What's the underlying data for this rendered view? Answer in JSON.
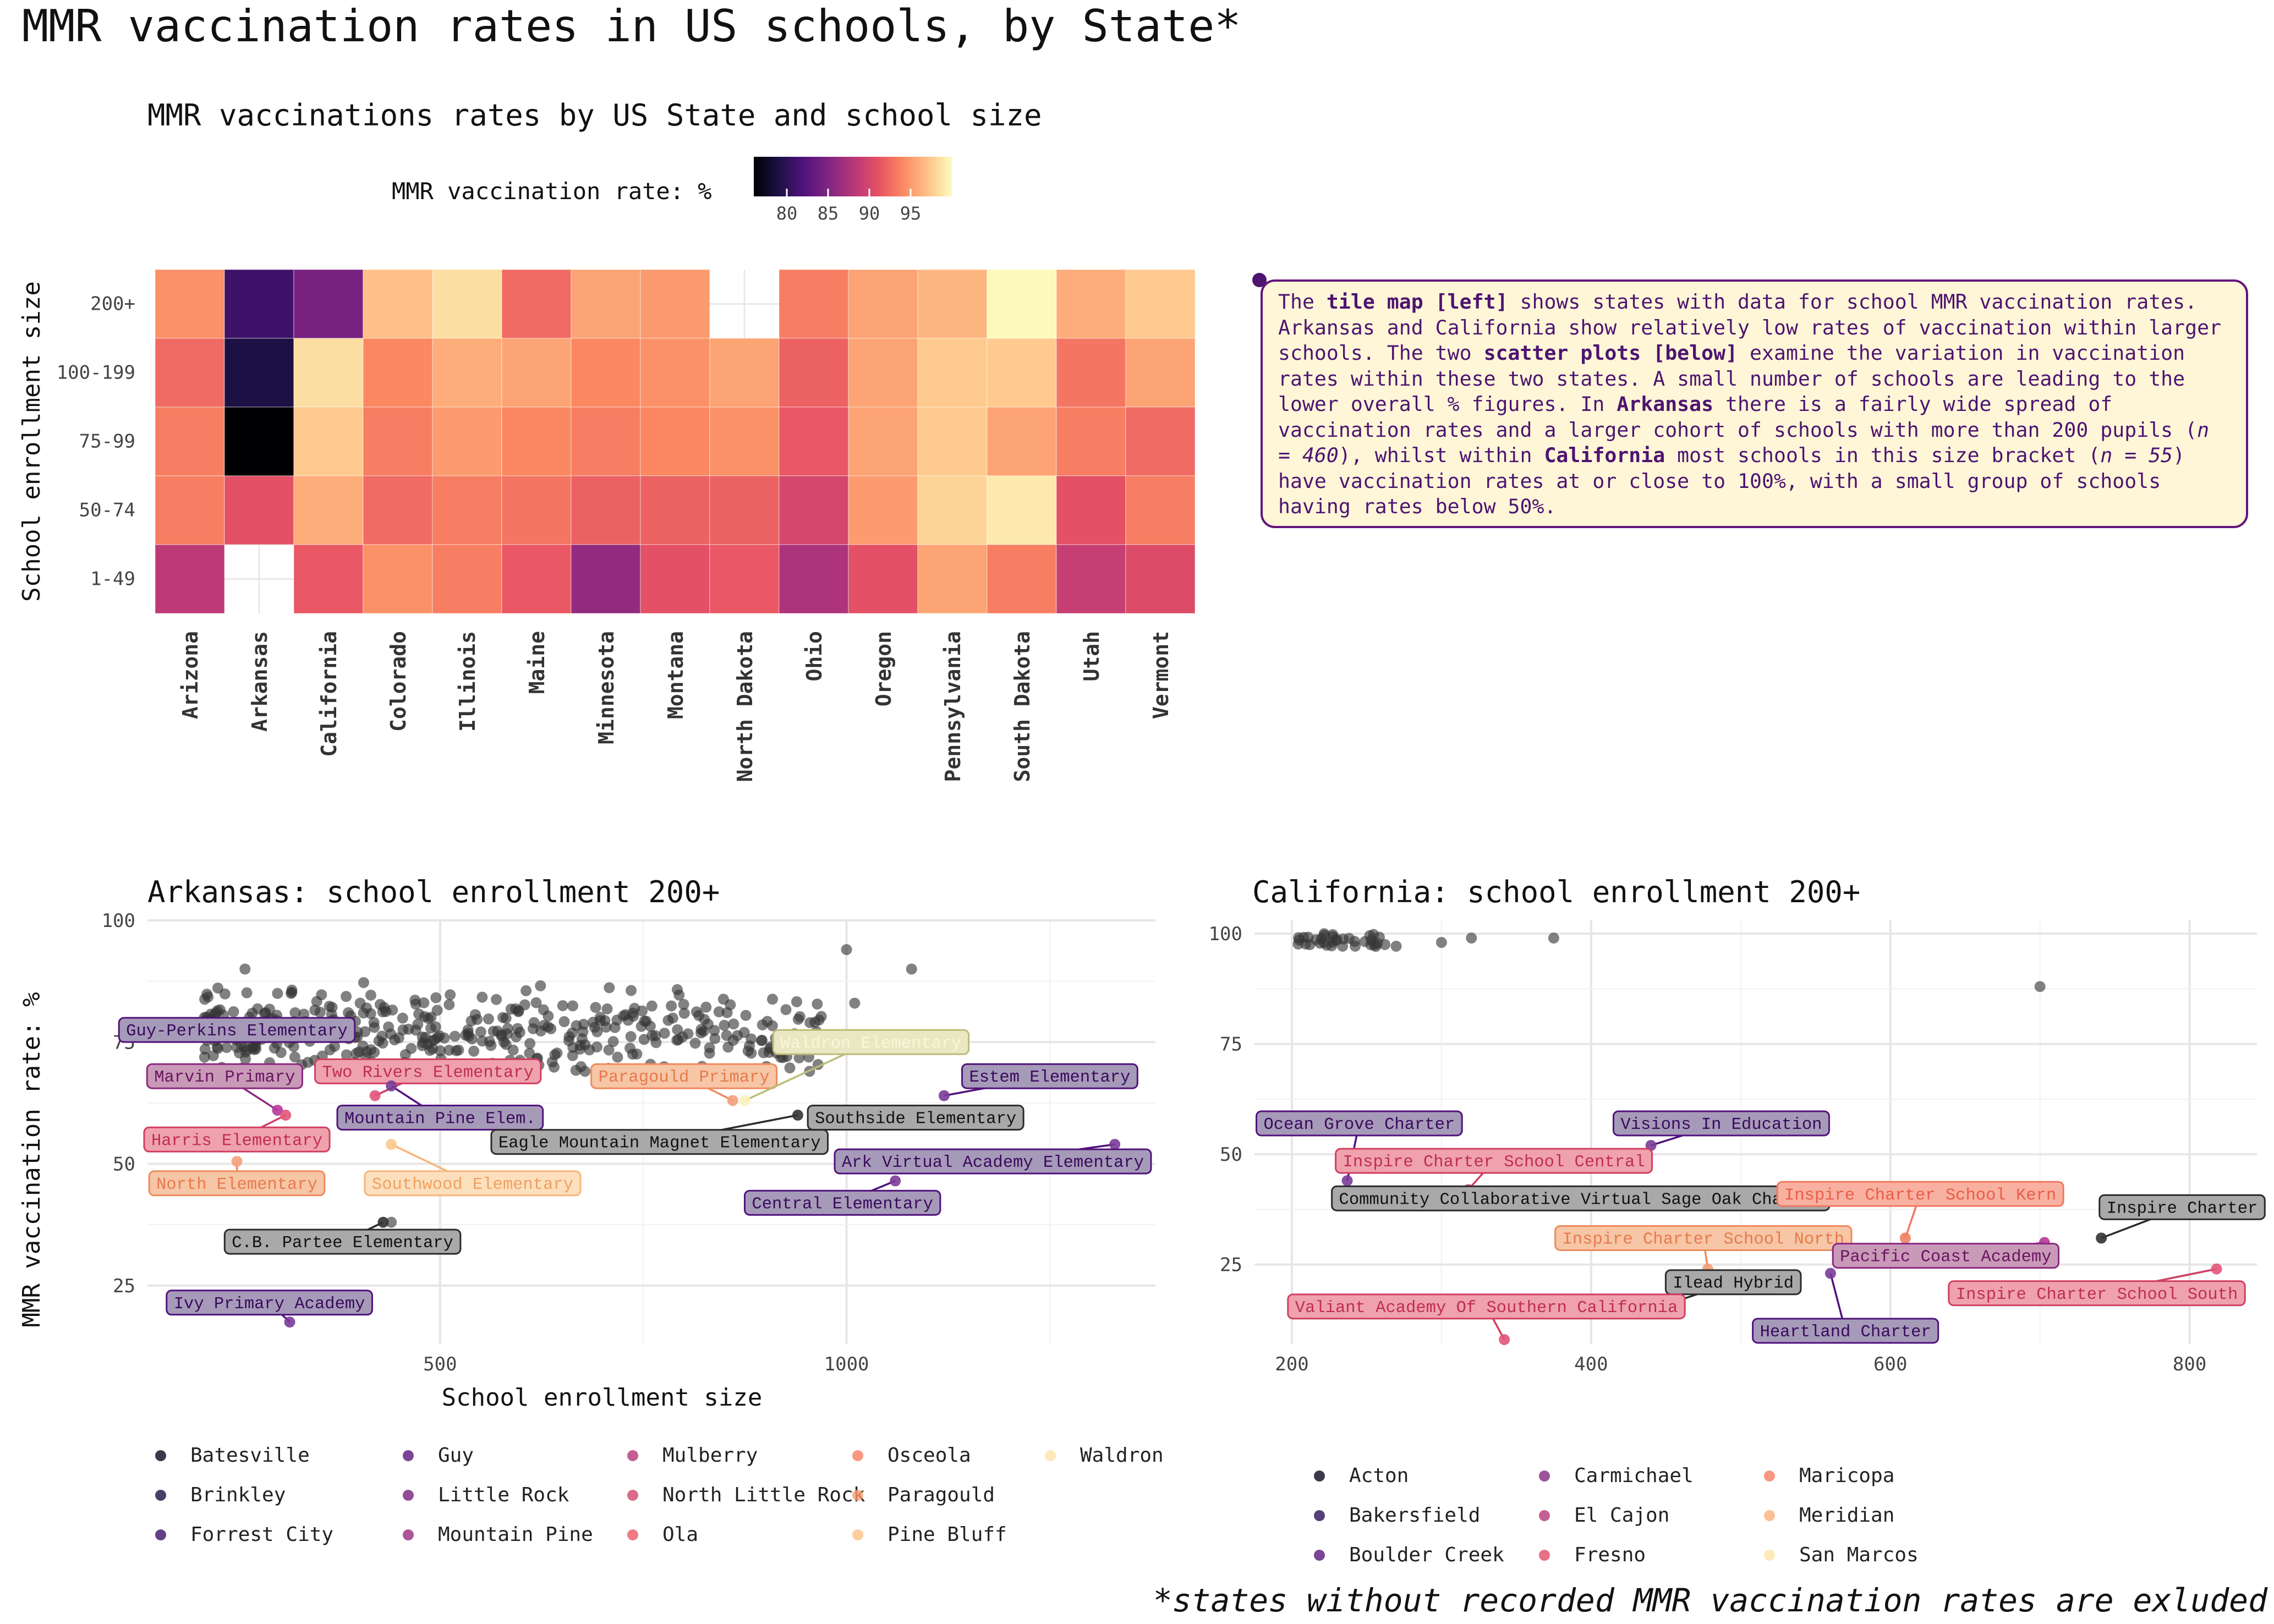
{
  "page": {
    "title": "MMR vaccination rates in US schools, by State*",
    "footnote": "*states without recorded MMR vaccination rates are exluded"
  },
  "annotation": {
    "text_html": "The <b>tile map [left]</b> shows states with data for school MMR vaccination rates. Arkansas and California show relatively low rates of vaccination within larger schools. The two <b>scatter plots [below]</b> examine the variation in vaccination rates within these two states. A small number of schools are leading to the lower overall % figures. In <b>Arkansas</b> there is a fairly wide spread of vaccination rates and a larger cohort of schools with more than 200 pupils (<i>n = 460</i>), whilst within <b>California</b> most schools in this size bracket (<i>n = 55</i>) have vaccination rates at or close to 100%, with a small group of schools having rates below 50%."
  },
  "chart_data": [
    {
      "type": "heatmap",
      "title": "MMR vaccinations rates by US State and school size",
      "xlabel": "",
      "ylabel": "School enrollment size",
      "legend_title": "MMR vaccination rate: %",
      "legend_ticks": [
        80,
        85,
        90,
        95
      ],
      "color_range": [
        76,
        100
      ],
      "columns": [
        "Arizona",
        "Arkansas",
        "California",
        "Colorado",
        "Illinois",
        "Maine",
        "Minnesota",
        "Montana",
        "North Dakota",
        "Ohio",
        "Oregon",
        "Pennsylvania",
        "South Dakota",
        "Utah",
        "Vermont"
      ],
      "rows": [
        "200+",
        "100-199",
        "75-99",
        "50-74",
        "1-49"
      ],
      "values": [
        [
          94.5,
          81,
          84.5,
          97,
          98.5,
          92.5,
          95.5,
          95,
          null,
          93.5,
          95.5,
          96.5,
          99.8,
          96,
          97.5
        ],
        [
          92.5,
          79,
          98.5,
          94,
          96,
          95.5,
          94,
          94.5,
          95.5,
          92,
          95.5,
          97.5,
          97.5,
          93,
          95.5
        ],
        [
          93.5,
          76,
          97.5,
          93.5,
          95,
          94,
          93.5,
          94,
          94.5,
          91.5,
          95.5,
          97.5,
          95.5,
          93.5,
          92.5
        ],
        [
          93.5,
          91,
          96,
          92.5,
          93.5,
          93,
          92,
          92,
          92,
          90,
          95,
          98,
          99,
          91,
          93.5
        ],
        [
          88.5,
          null,
          91.5,
          94.5,
          93.5,
          91.5,
          86,
          91,
          91.5,
          87.5,
          91,
          95.5,
          93.5,
          89,
          90.5
        ]
      ]
    },
    {
      "type": "scatter",
      "title": "Arkansas: school enrollment 200+",
      "xlabel": "School enrollment size",
      "ylabel": "MMR vaccination rate: %",
      "xlim": [
        140,
        1380
      ],
      "ylim": [
        13,
        100
      ],
      "xticks": [
        500,
        1000
      ],
      "yticks": [
        25,
        50,
        75,
        100
      ],
      "legend": [
        "Batesville",
        "Brinkley",
        "Forrest City",
        "Guy",
        "Little Rock",
        "Mountain Pine",
        "Mulberry",
        "North Little Rock",
        "Ola",
        "Osceola",
        "Paragould",
        "Pine Bluff",
        "Waldron"
      ],
      "labels": [
        {
          "text": "Guy-Perkins Elementary",
          "x": 317,
          "y": 76,
          "lx": 250,
          "ly": 77.5,
          "style": "purple"
        },
        {
          "text": "Marvin Primary",
          "x": 300,
          "y": 61,
          "lx": 235,
          "ly": 68,
          "style": "magenta"
        },
        {
          "text": "Two Rivers Elementary",
          "x": 420,
          "y": 64,
          "lx": 485,
          "ly": 69,
          "style": "red"
        },
        {
          "text": "Paragould Primary",
          "x": 860,
          "y": 63,
          "lx": 800,
          "ly": 68,
          "style": "orange"
        },
        {
          "text": "Waldron Elementary",
          "x": 875,
          "y": 63,
          "lx": 1030,
          "ly": 75,
          "style": "yellow"
        },
        {
          "text": "Estem Elementary",
          "x": 1120,
          "y": 64,
          "lx": 1250,
          "ly": 68,
          "style": "purple"
        },
        {
          "text": "Mountain Pine Elem.",
          "x": 440,
          "y": 66,
          "lx": 500,
          "ly": 59.5,
          "style": "purple"
        },
        {
          "text": "Southside Elementary",
          "x": 1000,
          "y": 60,
          "lx": 1085,
          "ly": 59.5,
          "style": "gray"
        },
        {
          "text": "Harris Elementary",
          "x": 310,
          "y": 60,
          "lx": 250,
          "ly": 55,
          "style": "red"
        },
        {
          "text": "Eagle Mountain Magnet Elementary",
          "x": 940,
          "y": 60,
          "lx": 770,
          "ly": 54.5,
          "style": "gray"
        },
        {
          "text": "Ark Virtual Academy Elementary",
          "x": 1330,
          "y": 54,
          "lx": 1180,
          "ly": 50.5,
          "style": "purple"
        },
        {
          "text": "North Elementary",
          "x": 250,
          "y": 50.5,
          "lx": 250,
          "ly": 46,
          "style": "orange"
        },
        {
          "text": "Southwood Elementary",
          "x": 440,
          "y": 54,
          "lx": 540,
          "ly": 46,
          "style": "orange2"
        },
        {
          "text": "Central Elementary",
          "x": 1060,
          "y": 46.5,
          "lx": 995,
          "ly": 42,
          "style": "purple"
        },
        {
          "text": "C.B. Partee Elementary",
          "x": 430,
          "y": 38,
          "lx": 380,
          "ly": 34,
          "style": "gray"
        },
        {
          "text": "Ivy Primary Academy",
          "x": 315,
          "y": 17.5,
          "lx": 290,
          "ly": 21.5,
          "style": "purple"
        }
      ]
    },
    {
      "type": "scatter",
      "title": "California: school enrollment 200+",
      "xlabel": "",
      "ylabel": "",
      "xlim": [
        175,
        845
      ],
      "ylim": [
        7,
        103
      ],
      "xticks": [
        200,
        400,
        600,
        800
      ],
      "yticks": [
        25,
        50,
        75,
        100
      ],
      "legend": [
        "Acton",
        "Bakersfield",
        "Boulder Creek",
        "Carmichael",
        "El Cajon",
        "Fresno",
        "Maricopa",
        "Meridian",
        "San Marcos"
      ],
      "labels": [
        {
          "text": "Ocean Grove Charter",
          "x": 237,
          "y": 44,
          "lx": 245,
          "ly": 57,
          "style": "purple"
        },
        {
          "text": "Visions In Education",
          "x": 440,
          "y": 52,
          "lx": 487,
          "ly": 57,
          "style": "purple"
        },
        {
          "text": "Inspire Charter School Central",
          "x": 318,
          "y": 42,
          "lx": 335,
          "ly": 48.5,
          "style": "red"
        },
        {
          "text": "Community Collaborative Virtual Sage Oak Charter",
          "x": 380,
          "y": 40,
          "lx": 393,
          "ly": 40,
          "style": "gray"
        },
        {
          "text": "Inspire Charter School Kern",
          "x": 610,
          "y": 31,
          "lx": 620,
          "ly": 41,
          "style": "salmon"
        },
        {
          "text": "Inspire Charter",
          "x": 741,
          "y": 31,
          "lx": 795,
          "ly": 38,
          "style": "gray"
        },
        {
          "text": "Inspire Charter School North",
          "x": 478,
          "y": 24,
          "lx": 475,
          "ly": 31,
          "style": "orange"
        },
        {
          "text": "Pacific Coast Academy",
          "x": 703,
          "y": 30,
          "lx": 637,
          "ly": 27,
          "style": "magenta"
        },
        {
          "text": "Ilead Hybrid",
          "x": 433,
          "y": 14,
          "lx": 495,
          "ly": 21,
          "style": "gray"
        },
        {
          "text": "Inspire Charter School South",
          "x": 818,
          "y": 24,
          "lx": 738,
          "ly": 18.5,
          "style": "red"
        },
        {
          "text": "Valiant Academy Of Southern California",
          "x": 342,
          "y": 8,
          "lx": 330,
          "ly": 15.5,
          "style": "red"
        },
        {
          "text": "Heartland Charter",
          "x": 560,
          "y": 23,
          "lx": 570,
          "ly": 10,
          "style": "purple"
        }
      ]
    }
  ]
}
